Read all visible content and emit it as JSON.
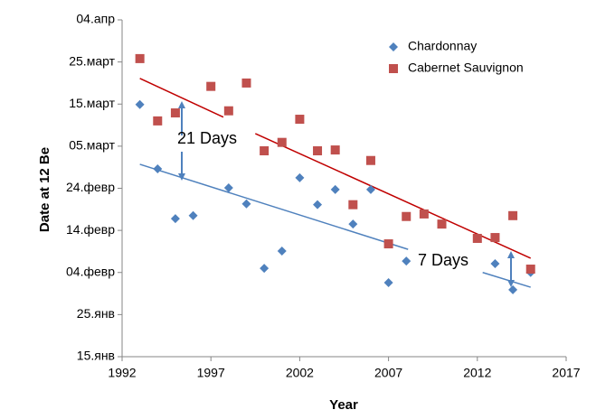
{
  "chart_data": {
    "type": "scatter",
    "xlabel": "Year",
    "ylabel": "Date at 12 Be",
    "xlim": [
      1992,
      2017
    ],
    "xticks": [
      1992,
      1997,
      2002,
      2007,
      2012,
      2017
    ],
    "ylim": [
      15,
      95
    ],
    "yticks": [
      {
        "value": 15,
        "label": "15.янв"
      },
      {
        "value": 25,
        "label": "25.янв"
      },
      {
        "value": 35,
        "label": "04.февр"
      },
      {
        "value": 45,
        "label": "14.февр"
      },
      {
        "value": 55,
        "label": "24.февр"
      },
      {
        "value": 65,
        "label": "05.март"
      },
      {
        "value": 75,
        "label": "15.март"
      },
      {
        "value": 85,
        "label": "25.март"
      },
      {
        "value": 95,
        "label": "04.апр"
      }
    ],
    "series": [
      {
        "name": "Chardonnay",
        "color": "#4f81bd",
        "marker": "diamond",
        "x": [
          1993,
          1994,
          1995,
          1996,
          1998,
          1999,
          2000,
          2001,
          2002,
          2003,
          2004,
          2005,
          2006,
          2007,
          2008,
          2013,
          2014,
          2015
        ],
        "values": [
          74.9,
          59.6,
          47.8,
          48.5,
          55.1,
          51.3,
          36.0,
          40.1,
          57.5,
          51.1,
          54.7,
          46.5,
          54.7,
          32.6,
          37.7,
          37.1,
          30.9,
          35.0
        ]
      },
      {
        "name": "Cabernet Sauvignon",
        "color": "#c0504d",
        "marker": "square",
        "x": [
          1993,
          1994,
          1995,
          1997,
          1998,
          1999,
          2000,
          2001,
          2002,
          2003,
          2004,
          2005,
          2006,
          2007,
          2008,
          2009,
          2010,
          2012,
          2013,
          2014,
          2015
        ],
        "values": [
          85.8,
          71.0,
          72.9,
          79.2,
          73.4,
          80.0,
          63.9,
          65.9,
          71.4,
          63.9,
          64.1,
          51.1,
          61.6,
          41.8,
          48.3,
          48.9,
          46.5,
          43.1,
          43.3,
          48.5,
          35.8
        ]
      }
    ],
    "trendlines": [
      {
        "color": "#c00000",
        "x": [
          1993,
          1997.7
        ],
        "y": [
          81.1,
          71.9
        ]
      },
      {
        "color": "#c00000",
        "x": [
          1999.5,
          2015
        ],
        "y": [
          68.0,
          38.4
        ]
      },
      {
        "color": "#4f81bd",
        "x": [
          1993,
          2008.1
        ],
        "y": [
          60.7,
          40.5
        ]
      },
      {
        "color": "#4f81bd",
        "x": [
          2012.3,
          2015
        ],
        "y": [
          35.0,
          31.5
        ]
      }
    ],
    "annotations": [
      "21 Days",
      "7 Days"
    ],
    "legend": "top-right"
  }
}
